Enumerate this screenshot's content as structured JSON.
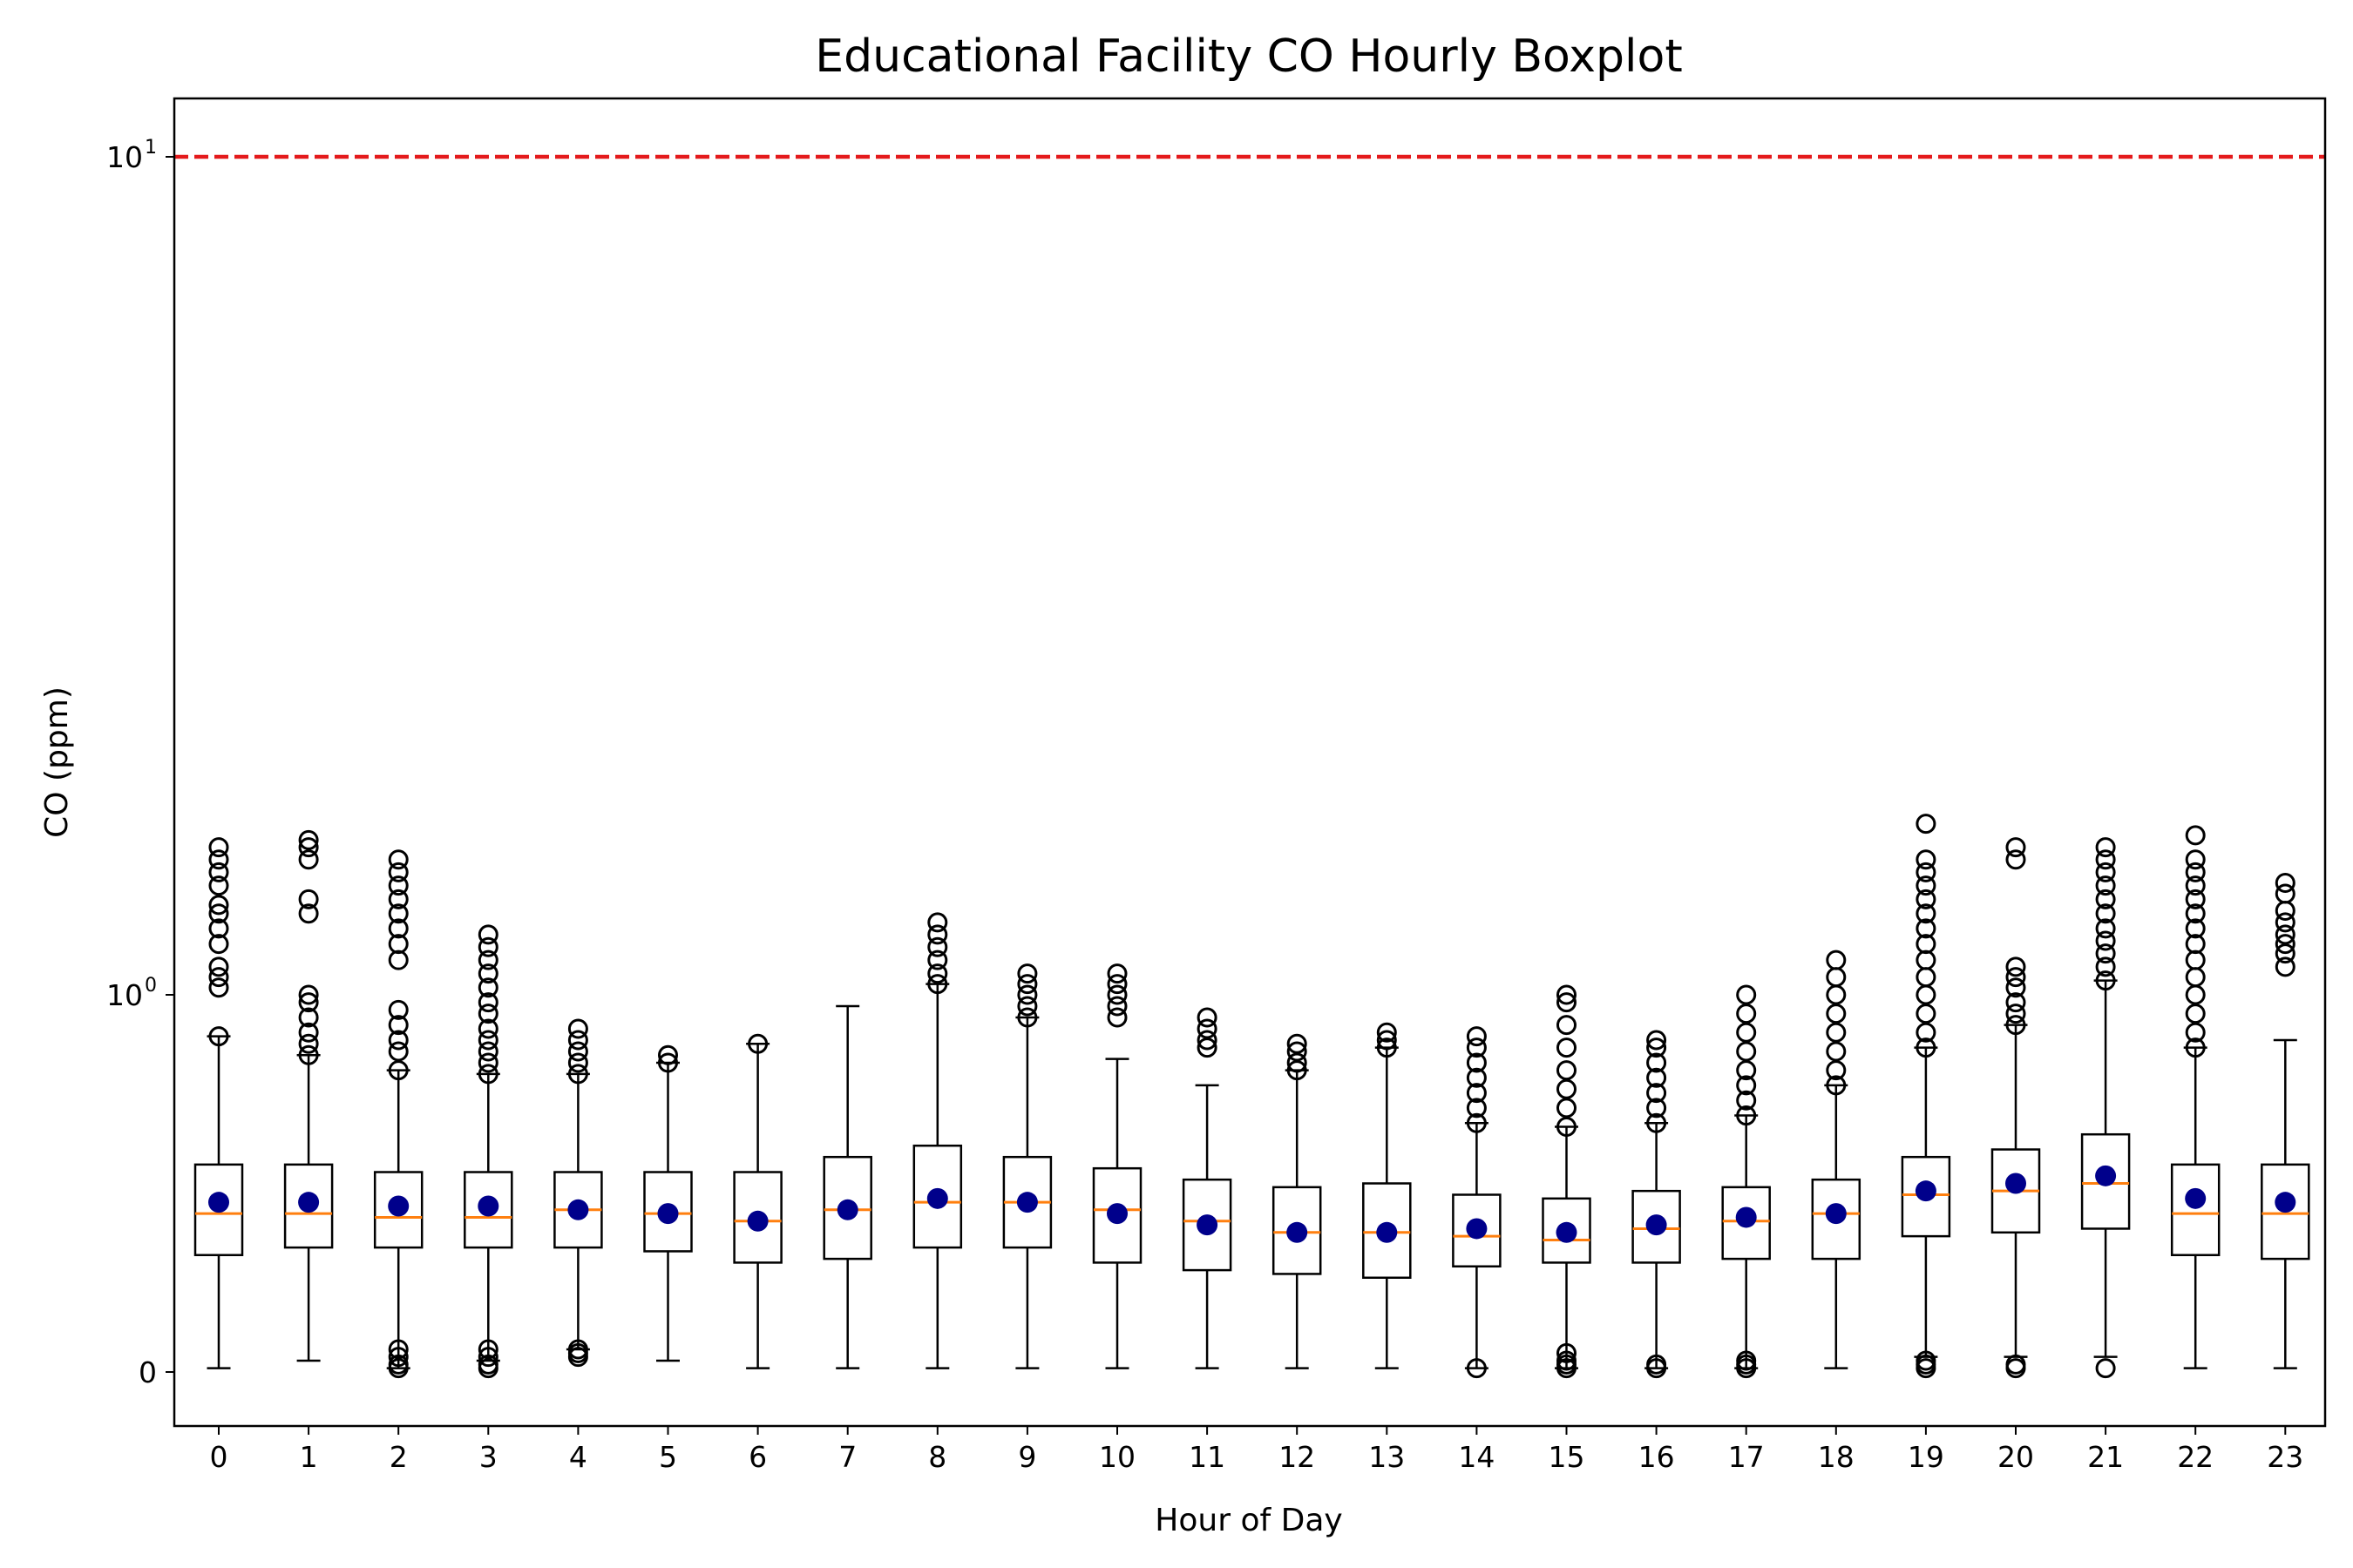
{
  "chart_data": {
    "type": "boxplot",
    "title": "Educational Facility CO Hourly Boxplot",
    "xlabel": "Hour of Day",
    "ylabel": "CO (ppm)",
    "yscale": "symlog",
    "ylim": [
      -0.05,
      12
    ],
    "yticks": [
      {
        "value": 0,
        "label": "0"
      },
      {
        "value": 1,
        "label": "10",
        "exp": "0"
      },
      {
        "value": 10,
        "label": "10",
        "exp": "1"
      }
    ],
    "reference_line": {
      "value": 10,
      "color": "#e41a1c",
      "style": "dashed"
    },
    "colors": {
      "box": "#000000",
      "median": "#ff7f0e",
      "mean": "#00008b",
      "flier": "#000000"
    },
    "categories": [
      "0",
      "1",
      "2",
      "3",
      "4",
      "5",
      "6",
      "7",
      "8",
      "9",
      "10",
      "11",
      "12",
      "13",
      "14",
      "15",
      "16",
      "17",
      "18",
      "19",
      "20",
      "21",
      "22",
      "23"
    ],
    "boxes": [
      {
        "hour": "0",
        "whislo": 0.01,
        "q1": 0.31,
        "med": 0.42,
        "q3": 0.55,
        "whishi": 0.89,
        "mean": 0.45,
        "fliers": [
          0.89,
          1.02,
          1.05,
          1.08,
          1.15,
          1.2,
          1.25,
          1.28,
          1.35,
          1.4,
          1.45,
          1.5
        ]
      },
      {
        "hour": "1",
        "whislo": 0.03,
        "q1": 0.33,
        "med": 0.42,
        "q3": 0.55,
        "whishi": 0.84,
        "mean": 0.45,
        "fliers": [
          0.84,
          0.87,
          0.9,
          0.94,
          0.98,
          1.0,
          1.25,
          1.3,
          1.45,
          1.5,
          1.53
        ]
      },
      {
        "hour": "2",
        "whislo": 0.01,
        "q1": 0.33,
        "med": 0.41,
        "q3": 0.53,
        "whishi": 0.8,
        "mean": 0.44,
        "fliers": [
          0.01,
          0.02,
          0.04,
          0.06,
          0.8,
          0.85,
          0.88,
          0.92,
          0.96,
          1.1,
          1.15,
          1.2,
          1.25,
          1.3,
          1.35,
          1.4,
          1.45
        ]
      },
      {
        "hour": "3",
        "whislo": 0.03,
        "q1": 0.33,
        "med": 0.41,
        "q3": 0.53,
        "whishi": 0.79,
        "mean": 0.44,
        "fliers": [
          0.01,
          0.02,
          0.04,
          0.06,
          0.79,
          0.82,
          0.85,
          0.88,
          0.91,
          0.95,
          0.98,
          1.02,
          1.06,
          1.1,
          1.14,
          1.18
        ]
      },
      {
        "hour": "4",
        "whislo": 0.06,
        "q1": 0.33,
        "med": 0.43,
        "q3": 0.53,
        "whishi": 0.79,
        "mean": 0.43,
        "fliers": [
          0.04,
          0.05,
          0.06,
          0.79,
          0.82,
          0.85,
          0.88,
          0.91
        ]
      },
      {
        "hour": "5",
        "whislo": 0.03,
        "q1": 0.32,
        "med": 0.42,
        "q3": 0.53,
        "whishi": 0.82,
        "mean": 0.42,
        "fliers": [
          0.82,
          0.84
        ]
      },
      {
        "hour": "6",
        "whislo": 0.01,
        "q1": 0.29,
        "med": 0.4,
        "q3": 0.53,
        "whishi": 0.87,
        "mean": 0.4,
        "fliers": [
          0.87
        ]
      },
      {
        "hour": "7",
        "whislo": 0.01,
        "q1": 0.3,
        "med": 0.43,
        "q3": 0.57,
        "whishi": 0.97,
        "mean": 0.43,
        "fliers": []
      },
      {
        "hour": "8",
        "whislo": 0.01,
        "q1": 0.33,
        "med": 0.45,
        "q3": 0.6,
        "whishi": 1.03,
        "mean": 0.46,
        "fliers": [
          1.03,
          1.06,
          1.1,
          1.14,
          1.18,
          1.22
        ]
      },
      {
        "hour": "9",
        "whislo": 0.01,
        "q1": 0.33,
        "med": 0.45,
        "q3": 0.57,
        "whishi": 0.94,
        "mean": 0.45,
        "fliers": [
          0.94,
          0.97,
          1.0,
          1.03,
          1.06
        ]
      },
      {
        "hour": "10",
        "whislo": 0.01,
        "q1": 0.29,
        "med": 0.43,
        "q3": 0.54,
        "whishi": 0.83,
        "mean": 0.42,
        "fliers": [
          0.94,
          0.97,
          1.0,
          1.03,
          1.06
        ]
      },
      {
        "hour": "11",
        "whislo": 0.01,
        "q1": 0.27,
        "med": 0.4,
        "q3": 0.51,
        "whishi": 0.76,
        "mean": 0.39,
        "fliers": [
          0.86,
          0.88,
          0.91,
          0.94
        ]
      },
      {
        "hour": "12",
        "whislo": 0.01,
        "q1": 0.26,
        "med": 0.37,
        "q3": 0.49,
        "whishi": 0.8,
        "mean": 0.37,
        "fliers": [
          0.8,
          0.82,
          0.85,
          0.87
        ]
      },
      {
        "hour": "13",
        "whislo": 0.01,
        "q1": 0.25,
        "med": 0.37,
        "q3": 0.5,
        "whishi": 0.86,
        "mean": 0.37,
        "fliers": [
          0.86,
          0.88,
          0.9
        ]
      },
      {
        "hour": "14",
        "whislo": 0.01,
        "q1": 0.28,
        "med": 0.36,
        "q3": 0.47,
        "whishi": 0.66,
        "mean": 0.38,
        "fliers": [
          0.01,
          0.66,
          0.7,
          0.74,
          0.78,
          0.82,
          0.86,
          0.89
        ]
      },
      {
        "hour": "15",
        "whislo": 0.01,
        "q1": 0.29,
        "med": 0.35,
        "q3": 0.46,
        "whishi": 0.65,
        "mean": 0.37,
        "fliers": [
          0.01,
          0.02,
          0.03,
          0.05,
          0.65,
          0.7,
          0.75,
          0.8,
          0.86,
          0.92,
          0.98,
          1.0
        ]
      },
      {
        "hour": "16",
        "whislo": 0.01,
        "q1": 0.29,
        "med": 0.38,
        "q3": 0.48,
        "whishi": 0.66,
        "mean": 0.39,
        "fliers": [
          0.01,
          0.02,
          0.66,
          0.7,
          0.74,
          0.78,
          0.82,
          0.86,
          0.88
        ]
      },
      {
        "hour": "17",
        "whislo": 0.01,
        "q1": 0.3,
        "med": 0.4,
        "q3": 0.49,
        "whishi": 0.68,
        "mean": 0.41,
        "fliers": [
          0.01,
          0.02,
          0.03,
          0.68,
          0.72,
          0.76,
          0.8,
          0.85,
          0.9,
          0.95,
          1.0
        ]
      },
      {
        "hour": "18",
        "whislo": 0.01,
        "q1": 0.3,
        "med": 0.42,
        "q3": 0.51,
        "whishi": 0.76,
        "mean": 0.42,
        "fliers": [
          0.76,
          0.8,
          0.85,
          0.9,
          0.95,
          1.0,
          1.05,
          1.1
        ]
      },
      {
        "hour": "19",
        "whislo": 0.04,
        "q1": 0.36,
        "med": 0.47,
        "q3": 0.57,
        "whishi": 0.86,
        "mean": 0.48,
        "fliers": [
          0.01,
          0.02,
          0.03,
          0.86,
          0.9,
          0.95,
          1.0,
          1.05,
          1.1,
          1.15,
          1.2,
          1.25,
          1.3,
          1.35,
          1.4,
          1.45,
          1.6
        ]
      },
      {
        "hour": "20",
        "whislo": 0.04,
        "q1": 0.37,
        "med": 0.48,
        "q3": 0.59,
        "whishi": 0.92,
        "mean": 0.5,
        "fliers": [
          0.01,
          0.02,
          0.92,
          0.95,
          0.98,
          1.02,
          1.05,
          1.08,
          1.45,
          1.5
        ]
      },
      {
        "hour": "21",
        "whislo": 0.04,
        "q1": 0.38,
        "med": 0.5,
        "q3": 0.63,
        "whishi": 1.04,
        "mean": 0.52,
        "fliers": [
          0.01,
          1.04,
          1.08,
          1.12,
          1.16,
          1.2,
          1.25,
          1.3,
          1.35,
          1.4,
          1.45,
          1.5
        ]
      },
      {
        "hour": "22",
        "whislo": 0.01,
        "q1": 0.31,
        "med": 0.42,
        "q3": 0.55,
        "whishi": 0.86,
        "mean": 0.46,
        "fliers": [
          0.86,
          0.9,
          0.95,
          1.0,
          1.05,
          1.1,
          1.15,
          1.2,
          1.25,
          1.3,
          1.35,
          1.4,
          1.45,
          1.55
        ]
      },
      {
        "hour": "23",
        "whislo": 0.01,
        "q1": 0.3,
        "med": 0.42,
        "q3": 0.55,
        "whishi": 0.88,
        "mean": 0.45,
        "fliers": [
          1.08,
          1.12,
          1.15,
          1.18,
          1.22,
          1.26,
          1.32,
          1.36
        ]
      }
    ]
  }
}
